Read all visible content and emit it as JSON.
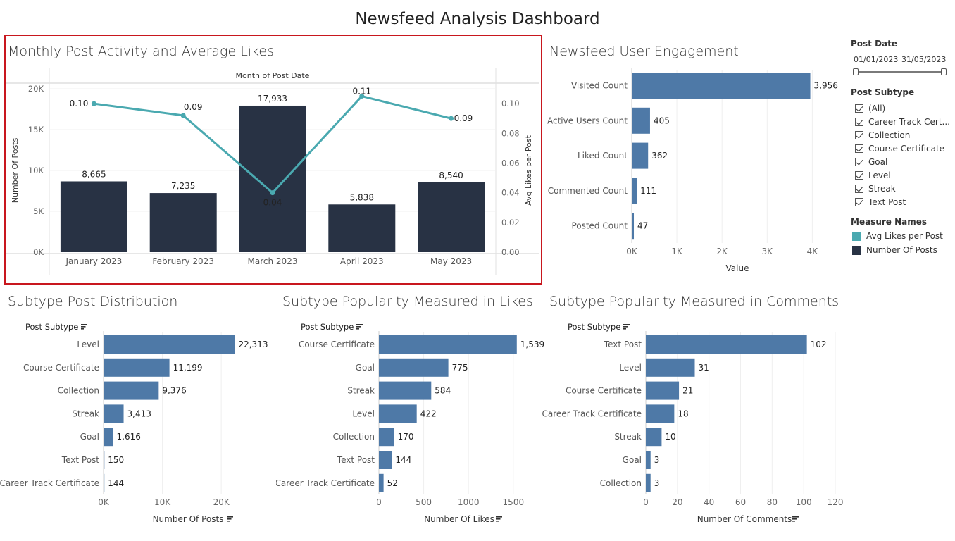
{
  "dashboard_title": "Newsfeed Analysis Dashboard",
  "panels": {
    "monthly": "Monthly Post Activity and Average Likes",
    "engagement": "Newsfeed User Engagement",
    "distribution": "Subtype Post Distribution",
    "likes": "Subtype Popularity Measured in Likes",
    "comments": "Subtype Popularity Measured in Comments"
  },
  "sidebar": {
    "post_date_label": "Post Date",
    "date_start": "01/01/2023",
    "date_end": "31/05/2023",
    "post_subtype_label": "Post Subtype",
    "subtypes": [
      "(All)",
      "Career Track Cert...",
      "Collection",
      "Course Certificate",
      "Goal",
      "Level",
      "Streak",
      "Text Post"
    ],
    "measure_names_label": "Measure Names",
    "legend": [
      {
        "label": "Avg Likes per Post",
        "color": "#4aa9b0"
      },
      {
        "label": "Number Of Posts",
        "color": "#283244"
      }
    ]
  },
  "chart_data": [
    {
      "id": "monthly",
      "type": "bar+line",
      "title": "Monthly Post Activity and Average Likes",
      "header": "Month of Post Date",
      "categories": [
        "January 2023",
        "February 2023",
        "March 2023",
        "April 2023",
        "May 2023"
      ],
      "series": [
        {
          "name": "Number Of Posts",
          "values": [
            8665,
            7235,
            17933,
            5838,
            8540
          ],
          "labels": [
            "8,665",
            "7,235",
            "17,933",
            "5,838",
            "8,540"
          ],
          "color": "#283244"
        },
        {
          "name": "Avg Likes per Post",
          "values": [
            0.1,
            0.092,
            0.04,
            0.105,
            0.09
          ],
          "labels": [
            "0.10",
            "0.09",
            "0.04",
            "0.11",
            "0.09"
          ],
          "color": "#4aa9b0"
        }
      ],
      "ylabel": "Number Of Posts",
      "y2label": "Avg Likes per Post",
      "ylim": [
        0,
        20000
      ],
      "y2lim": [
        0,
        0.11
      ],
      "yticks": [
        {
          "v": 0,
          "label": "0K"
        },
        {
          "v": 5000,
          "label": "5K"
        },
        {
          "v": 10000,
          "label": "10K"
        },
        {
          "v": 15000,
          "label": "15K"
        },
        {
          "v": 20000,
          "label": "20K"
        }
      ],
      "y2ticks": [
        {
          "v": 0,
          "label": "0.00"
        },
        {
          "v": 0.02,
          "label": "0.02"
        },
        {
          "v": 0.04,
          "label": "0.04"
        },
        {
          "v": 0.06,
          "label": "0.06"
        },
        {
          "v": 0.08,
          "label": "0.08"
        },
        {
          "v": 0.1,
          "label": "0.10"
        }
      ]
    },
    {
      "id": "engagement",
      "type": "bar",
      "orientation": "horizontal",
      "title": "Newsfeed User Engagement",
      "categories": [
        "Visited Count",
        "Active Users Count",
        "Liked Count",
        "Commented Count",
        "Posted Count"
      ],
      "values": [
        3956,
        405,
        362,
        111,
        47
      ],
      "labels": [
        "3,956",
        "405",
        "362",
        "111",
        "47"
      ],
      "xlabel": "Value",
      "xlim": [
        0,
        4400
      ],
      "xticks": [
        {
          "v": 0,
          "label": "0K"
        },
        {
          "v": 1000,
          "label": "1K"
        },
        {
          "v": 2000,
          "label": "2K"
        },
        {
          "v": 3000,
          "label": "3K"
        },
        {
          "v": 4000,
          "label": "4K"
        }
      ]
    },
    {
      "id": "distribution",
      "type": "bar",
      "orientation": "horizontal",
      "title": "Subtype Post Distribution",
      "field_label": "Post Subtype",
      "categories": [
        "Level",
        "Course Certificate",
        "Collection",
        "Streak",
        "Goal",
        "Text Post",
        "Career Track Certificate"
      ],
      "values": [
        22313,
        11199,
        9376,
        3413,
        1616,
        150,
        144
      ],
      "labels": [
        "22,313",
        "11,199",
        "9,376",
        "3,413",
        "1,616",
        "150",
        "144"
      ],
      "xlabel": "Number Of Posts",
      "xlim": [
        0,
        28000
      ],
      "xticks": [
        {
          "v": 0,
          "label": "0K"
        },
        {
          "v": 10000,
          "label": "10K"
        },
        {
          "v": 20000,
          "label": "20K"
        }
      ]
    },
    {
      "id": "likes",
      "type": "bar",
      "orientation": "horizontal",
      "title": "Subtype Popularity Measured in Likes",
      "field_label": "Post Subtype",
      "categories": [
        "Course Certificate",
        "Goal",
        "Streak",
        "Level",
        "Collection",
        "Text Post",
        "Career Track Certificate"
      ],
      "values": [
        1539,
        775,
        584,
        422,
        170,
        144,
        52
      ],
      "labels": [
        "1,539",
        "775",
        "584",
        "422",
        "170",
        "144",
        "52"
      ],
      "xlabel": "Number Of Likes",
      "xlim": [
        0,
        1800
      ],
      "xticks": [
        {
          "v": 0,
          "label": "0"
        },
        {
          "v": 500,
          "label": "500"
        },
        {
          "v": 1000,
          "label": "1000"
        },
        {
          "v": 1500,
          "label": "1500"
        }
      ]
    },
    {
      "id": "comments",
      "type": "bar",
      "orientation": "horizontal",
      "title": "Subtype Popularity Measured in Comments",
      "field_label": "Post Subtype",
      "categories": [
        "Text Post",
        "Level",
        "Course Certificate",
        "Career Track Certificate",
        "Streak",
        "Goal",
        "Collection"
      ],
      "values": [
        102,
        31,
        21,
        18,
        10,
        3,
        3
      ],
      "labels": [
        "102",
        "31",
        "21",
        "18",
        "10",
        "3",
        "3"
      ],
      "xlabel": "Number Of Comments",
      "xlim": [
        0,
        120
      ],
      "xticks": [
        {
          "v": 0,
          "label": "0"
        },
        {
          "v": 20,
          "label": "20"
        },
        {
          "v": 40,
          "label": "40"
        },
        {
          "v": 60,
          "label": "60"
        },
        {
          "v": 80,
          "label": "80"
        },
        {
          "v": 100,
          "label": "100"
        },
        {
          "v": 120,
          "label": "120"
        }
      ]
    }
  ]
}
